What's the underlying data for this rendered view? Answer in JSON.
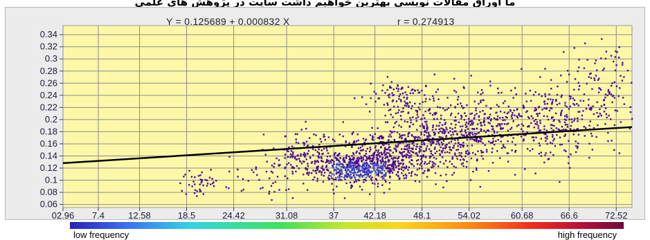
{
  "header": {
    "title": "ما اوراق مقالات نویسی بهترین خواهیم داشت سایت در پژوهش های علمی"
  },
  "regression": {
    "equation": "Y = 0.125689 + 0.000832 X",
    "r_label": "r = 0.274913",
    "intercept": 0.125689,
    "slope": 0.000832
  },
  "legend": {
    "low_label": "low frequency",
    "high_label": "high frequency"
  },
  "colors": {
    "plot_background": "#fdf8a8",
    "grid": "#8c8c8c",
    "points_low": "#3c4fd8",
    "points_high": "#4a0a9a",
    "regression_line": "#000000"
  },
  "chart_data": {
    "type": "scatter",
    "title": "",
    "xlabel": "",
    "ylabel": "",
    "x_ticks": [
      "02.96",
      "7.4",
      "12.58",
      "18.5",
      "24.42",
      "31.08",
      "37",
      "42.18",
      "48.1",
      "54.02",
      "60.68",
      "66.6",
      "72.52"
    ],
    "y_ticks": [
      "0.06",
      "0.08",
      "0.1",
      "0.12",
      "0.14",
      "0.16",
      "0.18",
      "0.2",
      "0.22",
      "0.24",
      "0.26",
      "0.28",
      "0.3",
      "0.32",
      "0.34"
    ],
    "xlim": [
      2.96,
      74.5
    ],
    "ylim": [
      0.055,
      0.355
    ],
    "grid": true,
    "clusters": [
      {
        "x": 40,
        "y": 0.12,
        "sx": 3.0,
        "sy": 0.012,
        "n": 520
      },
      {
        "x": 44,
        "y": 0.145,
        "sx": 5.0,
        "sy": 0.02,
        "n": 420
      },
      {
        "x": 50,
        "y": 0.175,
        "sx": 5.0,
        "sy": 0.025,
        "n": 360
      },
      {
        "x": 57,
        "y": 0.19,
        "sx": 5.0,
        "sy": 0.03,
        "n": 300
      },
      {
        "x": 65,
        "y": 0.2,
        "sx": 4.0,
        "sy": 0.03,
        "n": 200
      },
      {
        "x": 71,
        "y": 0.25,
        "sx": 2.5,
        "sy": 0.04,
        "n": 130
      },
      {
        "x": 33,
        "y": 0.14,
        "sx": 2.0,
        "sy": 0.018,
        "n": 120
      },
      {
        "x": 20,
        "y": 0.095,
        "sx": 1.2,
        "sy": 0.012,
        "n": 40
      },
      {
        "x": 45,
        "y": 0.24,
        "sx": 2.0,
        "sy": 0.015,
        "n": 90
      },
      {
        "x": 27,
        "y": 0.105,
        "sx": 3.0,
        "sy": 0.02,
        "n": 40
      }
    ]
  }
}
